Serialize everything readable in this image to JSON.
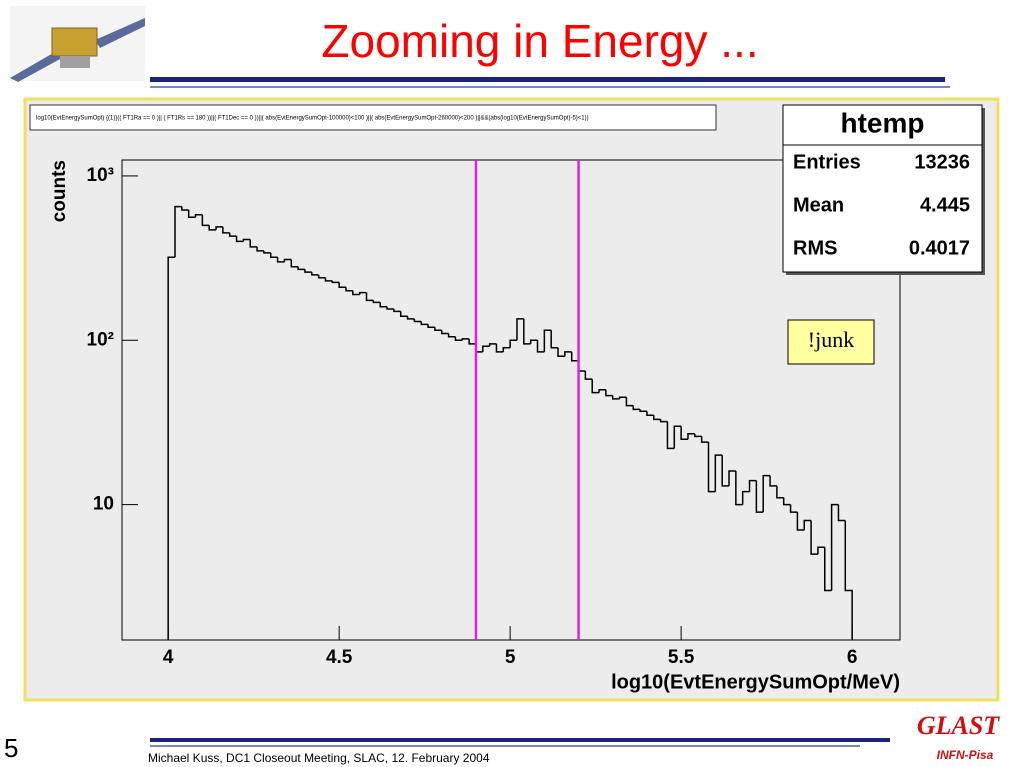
{
  "slide": {
    "title": "Zooming in Energy ...",
    "page_number": "5",
    "footer": "Michael Kuss, DC1 Closeout Meeting, SLAC, 12. February 2004",
    "logo_text": "GLAST",
    "logo_subtext": "INFN-Pisa"
  },
  "chart_data": {
    "type": "histogram",
    "title": "log10(EvtEnergySumOpt) {(1)}(( FT1Ra == 0 )|| ( FT1Rs == 180 ))||( FT1Dec == 0 ))||( abs(EvtEnergySumOpt-100000)<100 )||( abs(EvtEnergySumOpt-260000)<200 )||&&(abs(log10(EvtEnergySumOpt)-5)<1))",
    "x_label": "log10(EvtEnergySumOpt/MeV)",
    "y_label": "counts",
    "bins": [
      4.0,
      4.02,
      4.04,
      4.06,
      4.08,
      4.1,
      4.12,
      4.14,
      4.16,
      4.18,
      4.2,
      4.22,
      4.24,
      4.26,
      4.28,
      4.3,
      4.32,
      4.34,
      4.36,
      4.38,
      4.4,
      4.42,
      4.44,
      4.46,
      4.48,
      4.5,
      4.52,
      4.54,
      4.56,
      4.58,
      4.6,
      4.62,
      4.64,
      4.66,
      4.68,
      4.7,
      4.72,
      4.74,
      4.76,
      4.78,
      4.8,
      4.82,
      4.84,
      4.86,
      4.88,
      4.9,
      4.92,
      4.94,
      4.96,
      4.98,
      5.0,
      5.02,
      5.04,
      5.06,
      5.08,
      5.1,
      5.12,
      5.14,
      5.16,
      5.18,
      5.2,
      5.22,
      5.24,
      5.26,
      5.28,
      5.3,
      5.32,
      5.34,
      5.36,
      5.38,
      5.4,
      5.42,
      5.44,
      5.46,
      5.48,
      5.5,
      5.52,
      5.54,
      5.56,
      5.58,
      5.6,
      5.62,
      5.64,
      5.66,
      5.68,
      5.7,
      5.72,
      5.74,
      5.76,
      5.78,
      5.8,
      5.82,
      5.84,
      5.86,
      5.88,
      5.9,
      5.92,
      5.94,
      5.96,
      5.98,
      6.0
    ],
    "values": [
      320,
      650,
      620,
      560,
      580,
      500,
      470,
      490,
      450,
      430,
      400,
      410,
      370,
      350,
      340,
      320,
      300,
      310,
      280,
      270,
      260,
      250,
      240,
      230,
      225,
      210,
      200,
      190,
      195,
      175,
      170,
      160,
      155,
      150,
      140,
      135,
      130,
      125,
      120,
      115,
      110,
      105,
      100,
      102,
      95,
      85,
      92,
      95,
      85,
      90,
      100,
      135,
      95,
      100,
      85,
      115,
      90,
      80,
      85,
      75,
      65,
      58,
      48,
      50,
      46,
      44,
      45,
      40,
      38,
      37,
      35,
      33,
      32,
      22,
      30,
      25,
      27,
      26,
      24,
      12,
      20,
      13,
      16,
      10,
      12,
      14,
      9,
      15,
      13,
      11,
      10,
      9,
      7,
      8,
      5,
      5.5,
      3,
      10,
      8,
      3
    ],
    "color": "#000000",
    "xlim": [
      3.865,
      6.14
    ],
    "xticks": [
      4,
      4.5,
      5,
      5.5,
      6
    ],
    "ylim": [
      1.5,
      1250
    ],
    "log_y": true,
    "yticks": [
      {
        "value": 1000,
        "label": "10³"
      },
      {
        "value": 100,
        "label": "10²"
      },
      10
    ],
    "cut_lines": [
      4.9,
      5.2
    ],
    "cut_color": "#e020e0",
    "stats": {
      "name": "htemp",
      "rows": [
        [
          "Entries",
          "13236"
        ],
        [
          "Mean",
          "4.445"
        ],
        [
          "RMS",
          "0.4017"
        ]
      ]
    },
    "annotation": "!junk"
  }
}
